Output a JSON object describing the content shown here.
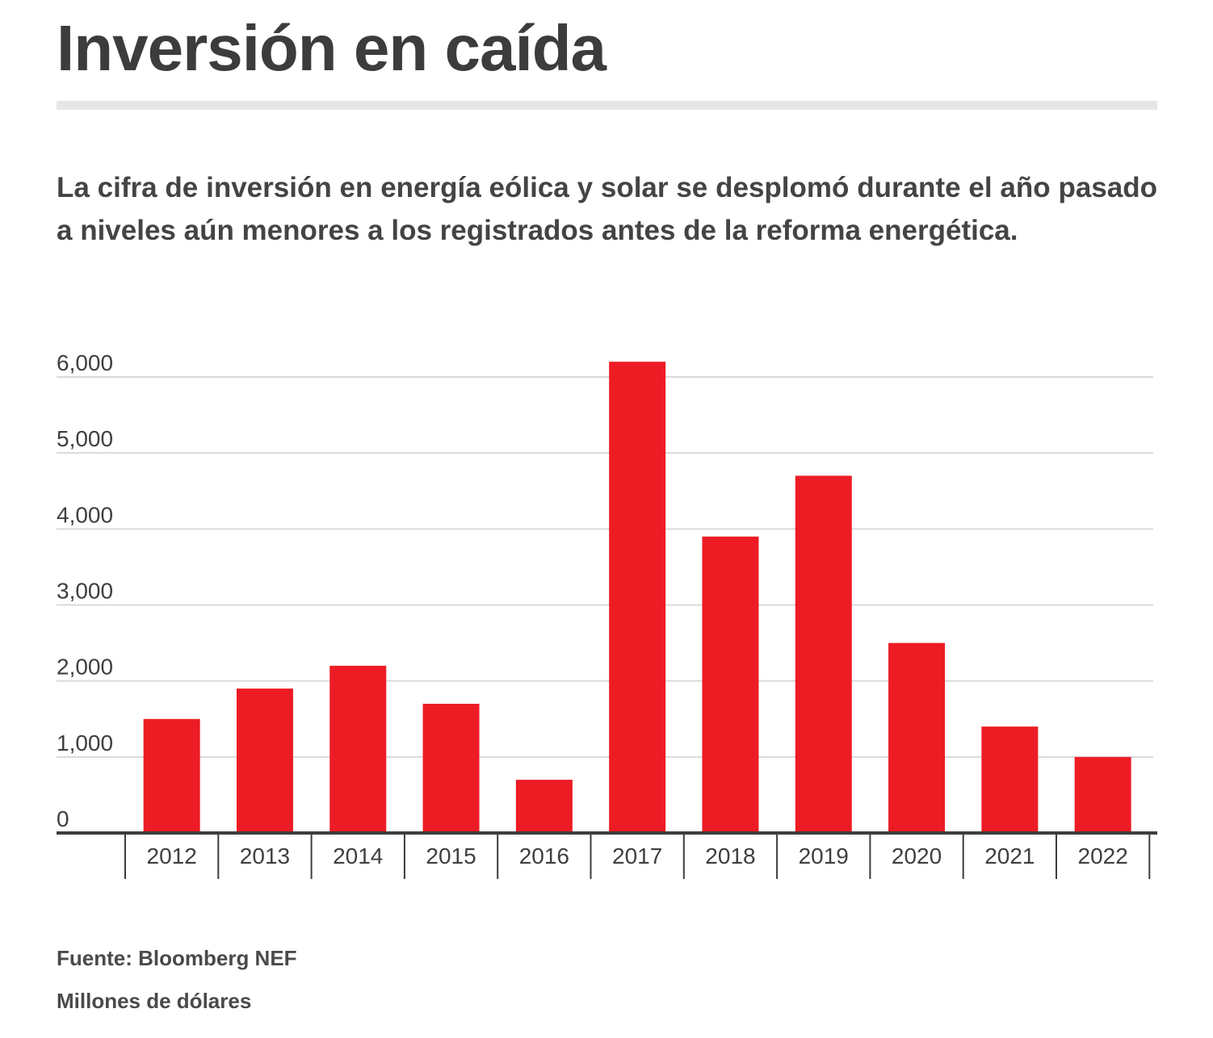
{
  "title": "Inversión en caída",
  "subtitle": "La cifra de inversión en energía eólica y solar se desplomó durante el año pasado a niveles aún menores a los registrados antes de la reforma energética.",
  "source": "Fuente: Bloomberg NEF",
  "units": "Millones de dólares",
  "colors": {
    "bar": "#ed1c24",
    "gridline": "#d9d9d9",
    "axis": "#3d3d3d",
    "rule": "#e6e6e6",
    "text": "#3f3f3f"
  },
  "chart_data": {
    "type": "bar",
    "title": "Inversión en caída",
    "xlabel": "",
    "ylabel": "Millones de dólares",
    "categories": [
      "2012",
      "2013",
      "2014",
      "2015",
      "2016",
      "2017",
      "2018",
      "2019",
      "2020",
      "2021",
      "2022"
    ],
    "values": [
      1500,
      1900,
      2200,
      1700,
      700,
      6200,
      3900,
      4700,
      2500,
      1400,
      1000
    ],
    "ylim": [
      0,
      6000
    ],
    "yticks": [
      0,
      1000,
      2000,
      3000,
      4000,
      5000,
      6000
    ],
    "ytick_labels": [
      "0",
      "1,000",
      "2,000",
      "3,000",
      "4,000",
      "5,000",
      "6,000"
    ],
    "grid": true,
    "legend": "none"
  }
}
